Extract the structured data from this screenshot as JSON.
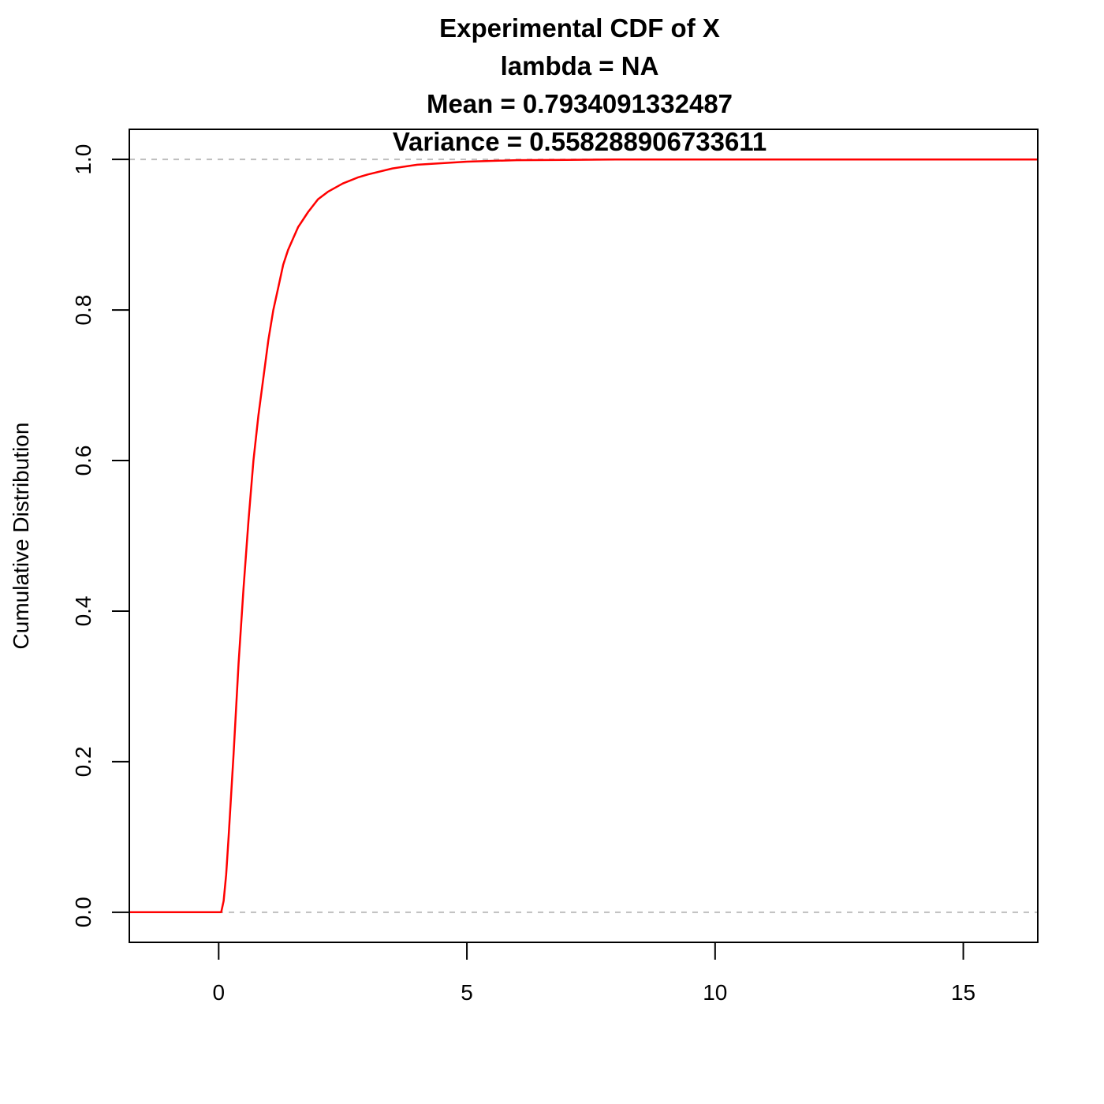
{
  "chart_data": {
    "type": "line",
    "title_lines": [
      "Experimental CDF of X",
      "lambda =  NA",
      "Mean =  0.7934091332487",
      "Variance =  0.558288906733611"
    ],
    "xlabel": "",
    "ylabel": "Cumulative Distribution",
    "xlim": [
      -1.8,
      16.5
    ],
    "ylim": [
      -0.04,
      1.04
    ],
    "x_ticks": [
      0,
      5,
      10,
      15
    ],
    "x_tick_labels": [
      "0",
      "5",
      "10",
      "15"
    ],
    "y_ticks": [
      0,
      0.2,
      0.4,
      0.6,
      0.8,
      1.0
    ],
    "y_tick_labels": [
      "0.0",
      "0.2",
      "0.4",
      "0.6",
      "0.8",
      "1.0"
    ],
    "reference_lines": [
      0,
      1
    ],
    "grid": false,
    "series": [
      {
        "color": "#ff0000",
        "x": [
          -1.8,
          0.05,
          0.1,
          0.15,
          0.2,
          0.3,
          0.4,
          0.5,
          0.6,
          0.7,
          0.8,
          0.9,
          1.0,
          1.1,
          1.2,
          1.3,
          1.4,
          1.5,
          1.6,
          1.8,
          2.0,
          2.2,
          2.5,
          2.8,
          3.0,
          3.5,
          4.0,
          5.0,
          6.0,
          7.0,
          8.0,
          10.0,
          16.5
        ],
        "y": [
          0,
          0,
          0.015,
          0.05,
          0.1,
          0.21,
          0.33,
          0.43,
          0.52,
          0.6,
          0.66,
          0.71,
          0.76,
          0.8,
          0.83,
          0.86,
          0.88,
          0.895,
          0.91,
          0.93,
          0.947,
          0.957,
          0.968,
          0.976,
          0.98,
          0.988,
          0.993,
          0.997,
          0.999,
          0.9995,
          1.0,
          1.0,
          1.0
        ]
      }
    ]
  }
}
